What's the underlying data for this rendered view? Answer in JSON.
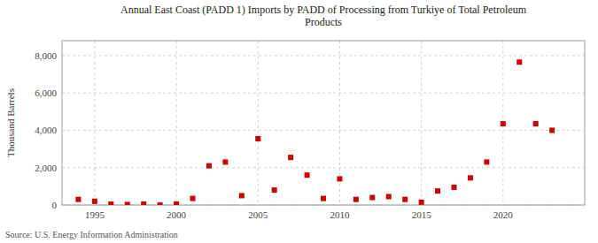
{
  "chart_data": {
    "type": "scatter",
    "title": "Annual East Coast (PADD 1) Imports by PADD of Processing from Turkiye of Total Petroleum\nProducts",
    "y_label": "Thousand Barrels",
    "annotations": [
      "Source: U.S. Energy Information Administration"
    ],
    "x": [
      1994,
      1995,
      1996,
      1997,
      1998,
      1999,
      2000,
      2001,
      2002,
      2003,
      2004,
      2005,
      2006,
      2007,
      2008,
      2009,
      2010,
      2011,
      2012,
      2013,
      2014,
      2015,
      2016,
      2017,
      2018,
      2019,
      2020,
      2021,
      2022,
      2023
    ],
    "values": [
      300,
      200,
      50,
      30,
      50,
      0,
      50,
      350,
      2100,
      2300,
      500,
      3550,
      800,
      2550,
      1600,
      350,
      1400,
      300,
      400,
      450,
      300,
      150,
      750,
      950,
      1450,
      2300,
      4350,
      7650,
      4350,
      4000
    ],
    "color": "#cc0000",
    "marker": "square",
    "xlim": [
      1993,
      2025
    ],
    "ylim": [
      0,
      8800
    ],
    "xticks": [
      1995,
      2000,
      2005,
      2010,
      2015,
      2020
    ],
    "yticks": [
      0,
      {
        "value": 2000,
        "label": "2,000"
      },
      {
        "value": 4000,
        "label": "4,000"
      },
      {
        "value": 6000,
        "label": "6,000"
      },
      {
        "value": 8000,
        "label": "8,000"
      }
    ],
    "grid": true
  }
}
